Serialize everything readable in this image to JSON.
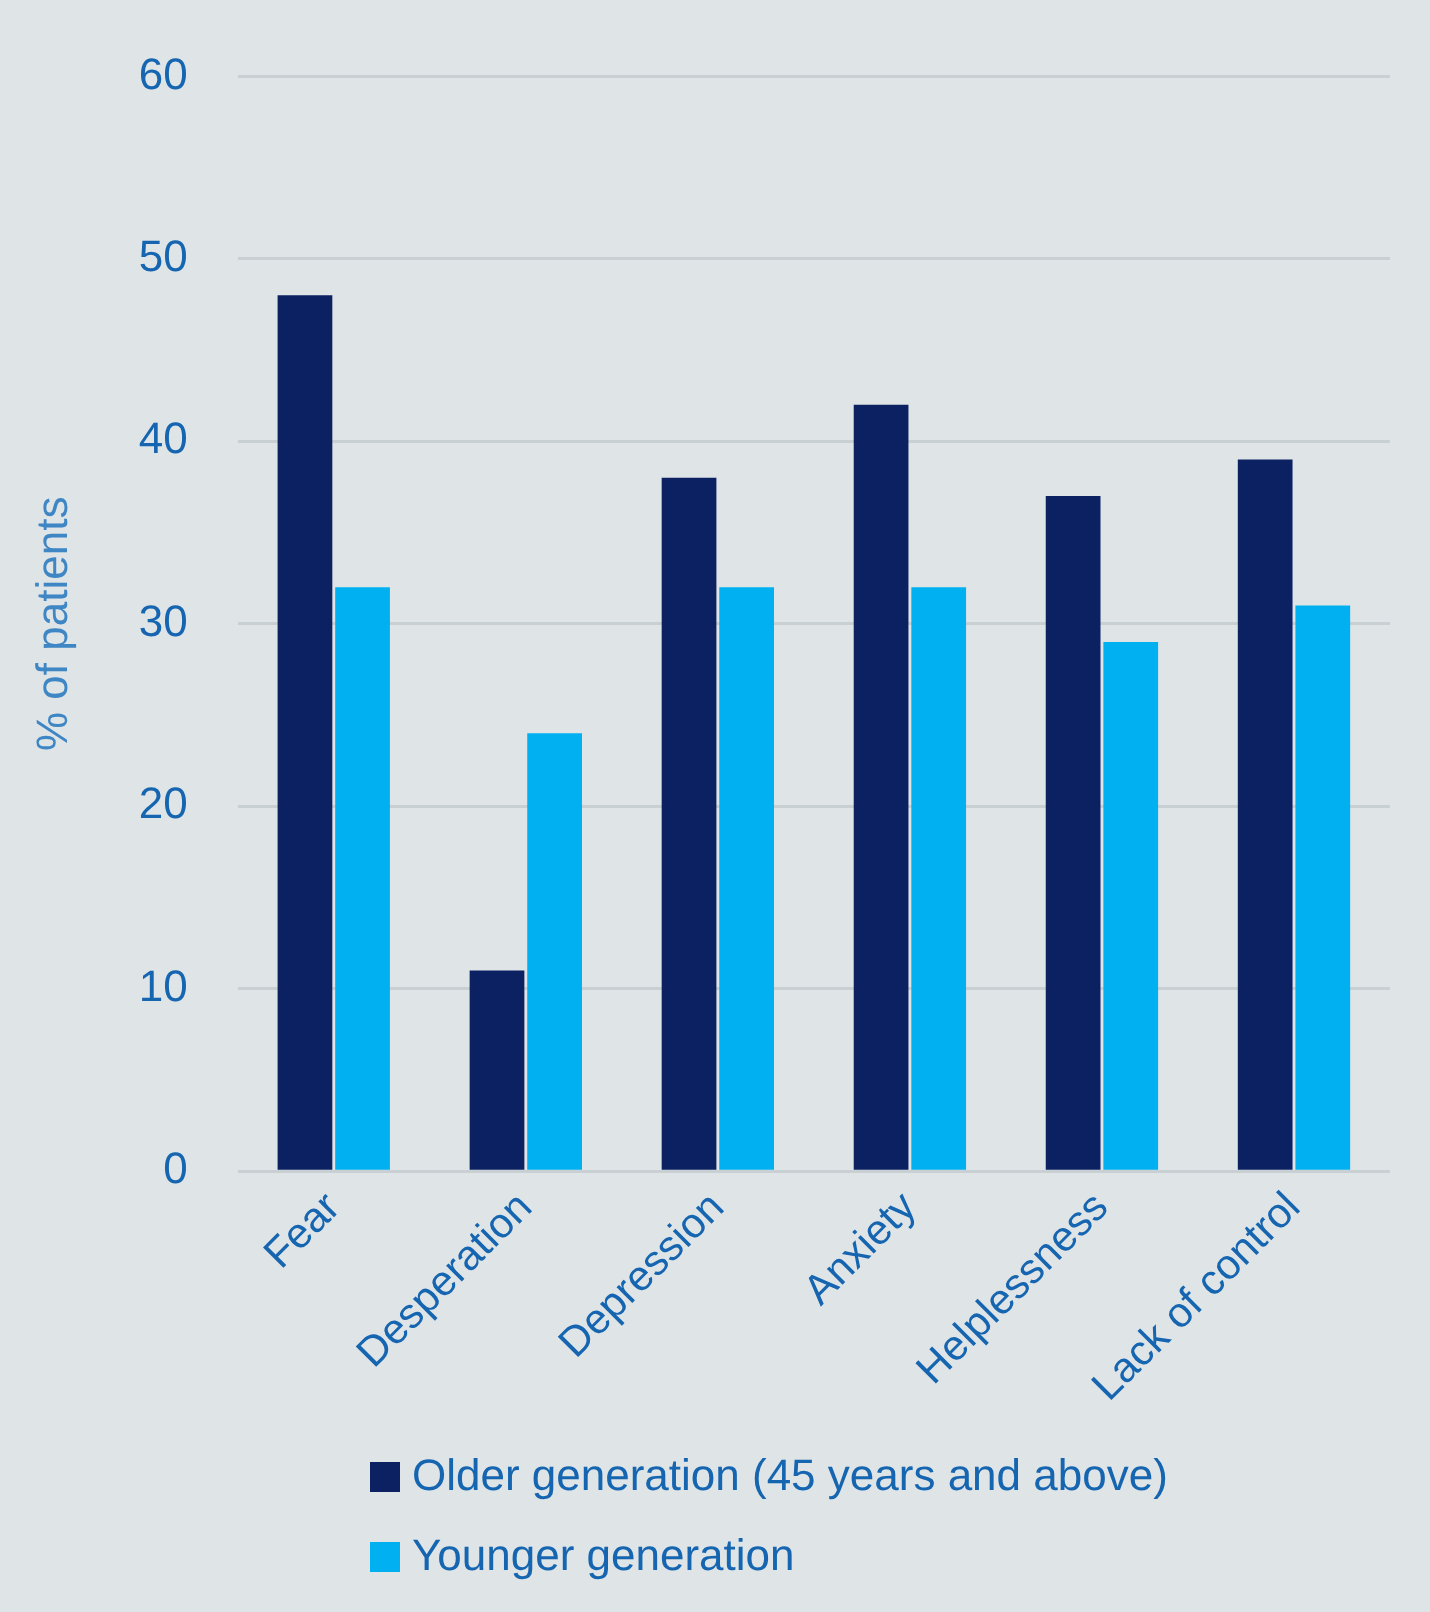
{
  "chart_data": {
    "type": "bar",
    "ylabel": "% of patients",
    "categories": [
      "Fear",
      "Desperation",
      "Depression",
      "Anxiety",
      "Helplessness",
      "Lack of control"
    ],
    "series": [
      {
        "name": "Older generation (45 years and above)",
        "color": "#0b2161",
        "values": [
          48,
          11,
          38,
          42,
          37,
          39
        ]
      },
      {
        "name": "Younger generation",
        "color": "#00b0f0",
        "values": [
          32,
          24,
          32,
          32,
          29,
          31
        ]
      }
    ],
    "ylim": [
      0,
      60
    ],
    "yticks": [
      0,
      10,
      20,
      30,
      40,
      50,
      60
    ],
    "grid": "y",
    "legend": "bottom"
  }
}
